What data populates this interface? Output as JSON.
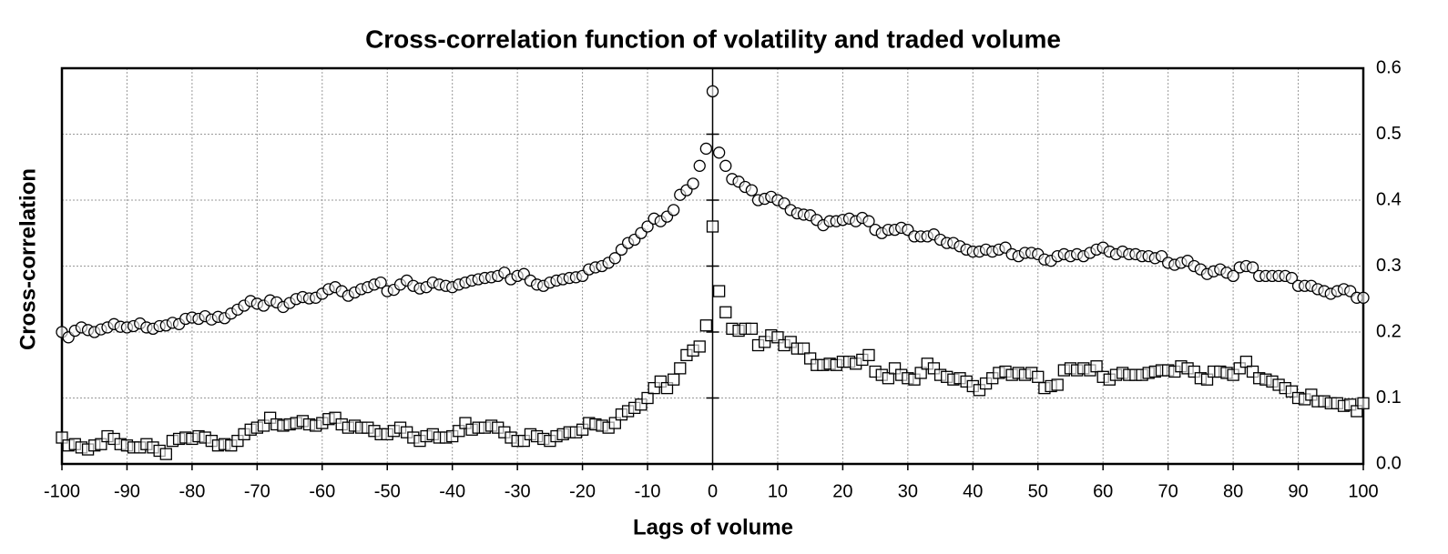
{
  "chart_data": {
    "type": "scatter",
    "title": "Cross-correlation function of volatility and traded volume",
    "xlabel": "Lags of volume",
    "ylabel": "Cross-correlation",
    "x": [
      -100,
      -99,
      -98,
      -97,
      -96,
      -95,
      -94,
      -93,
      -92,
      -91,
      -90,
      -89,
      -88,
      -87,
      -86,
      -85,
      -84,
      -83,
      -82,
      -81,
      -80,
      -79,
      -78,
      -77,
      -76,
      -75,
      -74,
      -73,
      -72,
      -71,
      -70,
      -69,
      -68,
      -67,
      -66,
      -65,
      -64,
      -63,
      -62,
      -61,
      -60,
      -59,
      -58,
      -57,
      -56,
      -55,
      -54,
      -53,
      -52,
      -51,
      -50,
      -49,
      -48,
      -47,
      -46,
      -45,
      -44,
      -43,
      -42,
      -41,
      -40,
      -39,
      -38,
      -37,
      -36,
      -35,
      -34,
      -33,
      -32,
      -31,
      -30,
      -29,
      -28,
      -27,
      -26,
      -25,
      -24,
      -23,
      -22,
      -21,
      -20,
      -19,
      -18,
      -17,
      -16,
      -15,
      -14,
      -13,
      -12,
      -11,
      -10,
      -9,
      -8,
      -7,
      -6,
      -5,
      -4,
      -3,
      -2,
      -1,
      0,
      1,
      2,
      3,
      4,
      5,
      6,
      7,
      8,
      9,
      10,
      11,
      12,
      13,
      14,
      15,
      16,
      17,
      18,
      19,
      20,
      21,
      22,
      23,
      24,
      25,
      26,
      27,
      28,
      29,
      30,
      31,
      32,
      33,
      34,
      35,
      36,
      37,
      38,
      39,
      40,
      41,
      42,
      43,
      44,
      45,
      46,
      47,
      48,
      49,
      50,
      51,
      52,
      53,
      54,
      55,
      56,
      57,
      58,
      59,
      60,
      61,
      62,
      63,
      64,
      65,
      66,
      67,
      68,
      69,
      70,
      71,
      72,
      73,
      74,
      75,
      76,
      77,
      78,
      79,
      80,
      81,
      82,
      83,
      84,
      85,
      86,
      87,
      88,
      89,
      90,
      91,
      92,
      93,
      94,
      95,
      96,
      97,
      98,
      99,
      100
    ],
    "series": [
      {
        "marker": "circle",
        "color": "#000000",
        "values": [
          0.2,
          0.192,
          0.202,
          0.207,
          0.203,
          0.2,
          0.204,
          0.207,
          0.212,
          0.208,
          0.207,
          0.209,
          0.213,
          0.207,
          0.205,
          0.209,
          0.21,
          0.214,
          0.212,
          0.22,
          0.222,
          0.22,
          0.224,
          0.219,
          0.223,
          0.221,
          0.228,
          0.234,
          0.24,
          0.247,
          0.243,
          0.24,
          0.248,
          0.245,
          0.238,
          0.244,
          0.25,
          0.253,
          0.251,
          0.252,
          0.258,
          0.265,
          0.268,
          0.262,
          0.255,
          0.26,
          0.265,
          0.268,
          0.272,
          0.275,
          0.262,
          0.264,
          0.272,
          0.278,
          0.27,
          0.266,
          0.268,
          0.275,
          0.272,
          0.27,
          0.268,
          0.272,
          0.275,
          0.278,
          0.28,
          0.282,
          0.283,
          0.285,
          0.29,
          0.28,
          0.285,
          0.288,
          0.278,
          0.272,
          0.27,
          0.275,
          0.278,
          0.28,
          0.282,
          0.283,
          0.285,
          0.295,
          0.298,
          0.3,
          0.305,
          0.312,
          0.325,
          0.335,
          0.34,
          0.35,
          0.36,
          0.372,
          0.368,
          0.375,
          0.385,
          0.408,
          0.415,
          0.425,
          0.452,
          0.478,
          0.565,
          0.472,
          0.452,
          0.432,
          0.428,
          0.42,
          0.415,
          0.4,
          0.402,
          0.405,
          0.4,
          0.395,
          0.385,
          0.38,
          0.378,
          0.377,
          0.37,
          0.362,
          0.368,
          0.368,
          0.37,
          0.372,
          0.368,
          0.373,
          0.368,
          0.355,
          0.35,
          0.355,
          0.355,
          0.358,
          0.355,
          0.345,
          0.345,
          0.345,
          0.348,
          0.34,
          0.335,
          0.335,
          0.33,
          0.325,
          0.322,
          0.322,
          0.325,
          0.322,
          0.325,
          0.328,
          0.318,
          0.315,
          0.32,
          0.32,
          0.318,
          0.31,
          0.308,
          0.315,
          0.318,
          0.315,
          0.318,
          0.315,
          0.32,
          0.325,
          0.328,
          0.322,
          0.318,
          0.322,
          0.318,
          0.318,
          0.315,
          0.315,
          0.312,
          0.315,
          0.305,
          0.302,
          0.305,
          0.308,
          0.3,
          0.295,
          0.288,
          0.292,
          0.295,
          0.29,
          0.285,
          0.298,
          0.3,
          0.298,
          0.285,
          0.285,
          0.285,
          0.285,
          0.285,
          0.282,
          0.27,
          0.27,
          0.27,
          0.265,
          0.262,
          0.258,
          0.262,
          0.265,
          0.262,
          0.252,
          0.252
        ]
      },
      {
        "marker": "square",
        "color": "#000000",
        "values": [
          0.04,
          0.028,
          0.03,
          0.025,
          0.022,
          0.028,
          0.03,
          0.042,
          0.038,
          0.03,
          0.028,
          0.025,
          0.025,
          0.03,
          0.025,
          0.02,
          0.015,
          0.035,
          0.038,
          0.04,
          0.038,
          0.042,
          0.04,
          0.035,
          0.028,
          0.03,
          0.028,
          0.035,
          0.045,
          0.052,
          0.055,
          0.058,
          0.07,
          0.06,
          0.058,
          0.06,
          0.062,
          0.065,
          0.06,
          0.058,
          0.062,
          0.068,
          0.07,
          0.06,
          0.055,
          0.058,
          0.055,
          0.055,
          0.05,
          0.045,
          0.045,
          0.05,
          0.055,
          0.048,
          0.04,
          0.035,
          0.042,
          0.045,
          0.04,
          0.04,
          0.042,
          0.05,
          0.062,
          0.052,
          0.055,
          0.055,
          0.058,
          0.055,
          0.048,
          0.04,
          0.035,
          0.035,
          0.045,
          0.042,
          0.038,
          0.035,
          0.042,
          0.045,
          0.048,
          0.048,
          0.052,
          0.062,
          0.06,
          0.058,
          0.055,
          0.062,
          0.075,
          0.08,
          0.085,
          0.09,
          0.1,
          0.115,
          0.125,
          0.115,
          0.128,
          0.145,
          0.165,
          0.172,
          0.178,
          0.21,
          0.36,
          0.262,
          0.23,
          0.205,
          0.202,
          0.205,
          0.205,
          0.18,
          0.185,
          0.195,
          0.192,
          0.18,
          0.185,
          0.175,
          0.175,
          0.16,
          0.15,
          0.15,
          0.152,
          0.15,
          0.155,
          0.155,
          0.152,
          0.158,
          0.165,
          0.14,
          0.135,
          0.13,
          0.145,
          0.135,
          0.13,
          0.128,
          0.138,
          0.152,
          0.145,
          0.135,
          0.132,
          0.128,
          0.13,
          0.125,
          0.118,
          0.112,
          0.122,
          0.13,
          0.138,
          0.14,
          0.135,
          0.138,
          0.135,
          0.138,
          0.132,
          0.115,
          0.118,
          0.12,
          0.142,
          0.145,
          0.142,
          0.145,
          0.142,
          0.148,
          0.132,
          0.128,
          0.135,
          0.138,
          0.135,
          0.135,
          0.135,
          0.138,
          0.14,
          0.142,
          0.142,
          0.14,
          0.148,
          0.145,
          0.14,
          0.13,
          0.128,
          0.14,
          0.14,
          0.138,
          0.135,
          0.145,
          0.155,
          0.14,
          0.13,
          0.128,
          0.125,
          0.12,
          0.115,
          0.11,
          0.1,
          0.098,
          0.105,
          0.095,
          0.095,
          0.092,
          0.092,
          0.088,
          0.09,
          0.08,
          0.092
        ]
      }
    ],
    "xlim": [
      -100,
      100
    ],
    "xticks": [
      -100,
      -90,
      -80,
      -70,
      -60,
      -50,
      -40,
      -30,
      -20,
      -10,
      0,
      10,
      20,
      30,
      40,
      50,
      60,
      70,
      80,
      90,
      100
    ],
    "ylim": [
      0,
      0.6
    ],
    "yticks": [
      {
        "value": 0,
        "label": "0.0"
      },
      0.1,
      0.2,
      0.3,
      0.4,
      0.5,
      0.6
    ],
    "y_axis_side": "right",
    "grid": true
  }
}
